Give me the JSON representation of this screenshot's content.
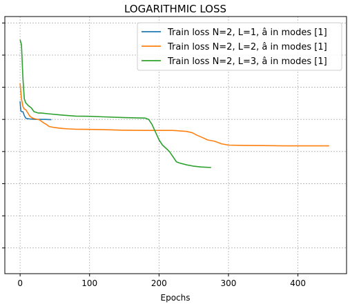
{
  "chart_data": {
    "type": "line",
    "title": "LOGARITHMIC LOSS",
    "xlabel": "Epochs",
    "ylabel": "",
    "xlim": [
      -22,
      470
    ],
    "ylim": [
      0,
      1
    ],
    "x_ticks": [
      0,
      100,
      200,
      300,
      400
    ],
    "x_tick_labels": [
      "0",
      "100",
      "200",
      "300",
      "400"
    ],
    "y_tick_positions": [
      0.1,
      0.225,
      0.35,
      0.475,
      0.6,
      0.725,
      0.85,
      0.975
    ],
    "y_tick_labels_visible": false,
    "grid": true,
    "legend_position": "top-right",
    "series": [
      {
        "name": "Train loss N=2, L=1, â in modes [1]",
        "color": "#1f77b4",
        "x": [
          0,
          1,
          2,
          4,
          6,
          8,
          10,
          14,
          18,
          22,
          28,
          35,
          45
        ],
        "y": [
          0.67,
          0.635,
          0.63,
          0.63,
          0.615,
          0.605,
          0.603,
          0.602,
          0.601,
          0.6,
          0.6,
          0.6,
          0.599
        ]
      },
      {
        "name": "Train loss N=2, L=2, â in modes [1]",
        "color": "#ff7f0e",
        "x": [
          0,
          2,
          4,
          6,
          8,
          10,
          14,
          18,
          22,
          28,
          32,
          38,
          42,
          50,
          60,
          70,
          80,
          100,
          120,
          150,
          180,
          200,
          220,
          240,
          248,
          255,
          262,
          270,
          280,
          290,
          300,
          320,
          350,
          380,
          400,
          420,
          445
        ],
        "y": [
          0.74,
          0.68,
          0.65,
          0.64,
          0.638,
          0.63,
          0.612,
          0.605,
          0.602,
          0.598,
          0.59,
          0.58,
          0.572,
          0.568,
          0.565,
          0.563,
          0.562,
          0.561,
          0.56,
          0.558,
          0.557,
          0.557,
          0.557,
          0.553,
          0.548,
          0.538,
          0.53,
          0.52,
          0.515,
          0.505,
          0.5,
          0.499,
          0.498,
          0.497,
          0.497,
          0.497,
          0.497
        ],
        "unused": []
      },
      {
        "name": "Train loss N=2, L=3, â in modes [1]",
        "color": "#2ca02c",
        "x": [
          0,
          2,
          4,
          6,
          8,
          12,
          16,
          20,
          26,
          30,
          40,
          60,
          80,
          100,
          120,
          150,
          180,
          185,
          190,
          195,
          200,
          205,
          210,
          215,
          220,
          225,
          230,
          240,
          250,
          260,
          275
        ],
        "y": [
          0.91,
          0.89,
          0.76,
          0.68,
          0.665,
          0.653,
          0.645,
          0.63,
          0.625,
          0.625,
          0.622,
          0.617,
          0.613,
          0.612,
          0.61,
          0.607,
          0.605,
          0.6,
          0.58,
          0.55,
          0.52,
          0.5,
          0.488,
          0.475,
          0.455,
          0.435,
          0.43,
          0.423,
          0.418,
          0.415,
          0.413
        ]
      }
    ]
  }
}
